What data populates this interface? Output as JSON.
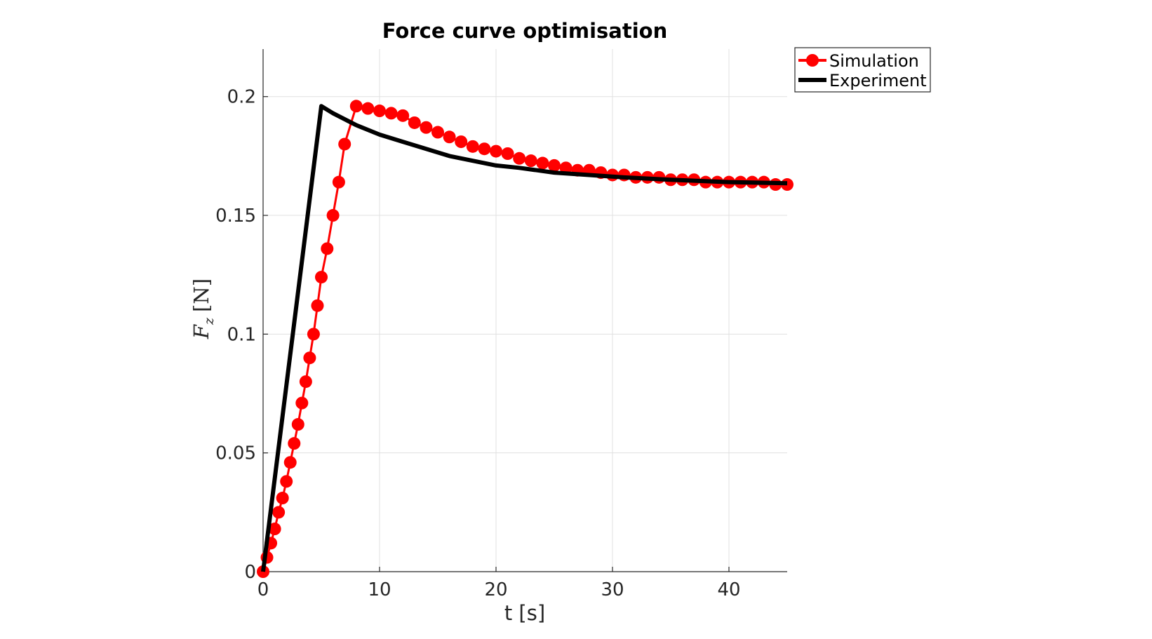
{
  "chart_data": {
    "type": "line",
    "title": "Force curve optimisation",
    "xlabel": "t [s]",
    "ylabel": {
      "symbol": "F",
      "subscript": "z",
      "unit": "[N]"
    },
    "xlim": [
      0,
      45
    ],
    "ylim": [
      0,
      0.22
    ],
    "xticks": [
      0,
      10,
      20,
      30,
      40
    ],
    "xtick_labels": [
      "0",
      "10",
      "20",
      "30",
      "40"
    ],
    "yticks": [
      0,
      0.05,
      0.1,
      0.15,
      0.2
    ],
    "ytick_labels": [
      "0",
      "0.05",
      "0.1",
      "0.15",
      "0.2"
    ],
    "grid": true,
    "legend_position": "top-right, outside",
    "colors": {
      "simulation": "#ff0000",
      "experiment": "#000000",
      "grid": "#e0e0e0",
      "axis": "#262626"
    },
    "series": [
      {
        "name": "Simulation",
        "style": "line-markers",
        "x": [
          0,
          0.333,
          0.667,
          1.0,
          1.333,
          1.667,
          2.0,
          2.333,
          2.667,
          3.0,
          3.333,
          3.667,
          4.0,
          4.333,
          4.667,
          5.0,
          5.5,
          6.0,
          6.5,
          7.0,
          8.0,
          9.0,
          10.0,
          11.0,
          12.0,
          13.0,
          14.0,
          15.0,
          16.0,
          17.0,
          18.0,
          19.0,
          20.0,
          21.0,
          22.0,
          23.0,
          24.0,
          25.0,
          26.0,
          27.0,
          28.0,
          29.0,
          30.0,
          31.0,
          32.0,
          33.0,
          34.0,
          35.0,
          36.0,
          37.0,
          38.0,
          39.0,
          40.0,
          41.0,
          42.0,
          43.0,
          44.0,
          45.0
        ],
        "y": [
          0,
          0.006,
          0.012,
          0.018,
          0.025,
          0.031,
          0.038,
          0.046,
          0.054,
          0.062,
          0.071,
          0.08,
          0.09,
          0.1,
          0.112,
          0.124,
          0.136,
          0.15,
          0.164,
          0.18,
          0.196,
          0.195,
          0.194,
          0.193,
          0.192,
          0.189,
          0.187,
          0.185,
          0.183,
          0.181,
          0.179,
          0.178,
          0.177,
          0.176,
          0.174,
          0.173,
          0.172,
          0.171,
          0.17,
          0.169,
          0.169,
          0.168,
          0.167,
          0.167,
          0.166,
          0.166,
          0.166,
          0.165,
          0.165,
          0.165,
          0.164,
          0.164,
          0.164,
          0.164,
          0.164,
          0.164,
          0.163,
          0.163
        ]
      },
      {
        "name": "Experiment",
        "style": "line",
        "x": [
          0,
          5.0,
          6.0,
          8.0,
          10.0,
          12.0,
          14.0,
          16.0,
          18.0,
          20.0,
          22.0,
          25.0,
          28.0,
          31.0,
          35.0,
          40.0,
          45.0
        ],
        "y": [
          0,
          0.196,
          0.193,
          0.188,
          0.184,
          0.181,
          0.178,
          0.175,
          0.173,
          0.171,
          0.17,
          0.168,
          0.167,
          0.166,
          0.165,
          0.164,
          0.1635
        ]
      }
    ]
  }
}
